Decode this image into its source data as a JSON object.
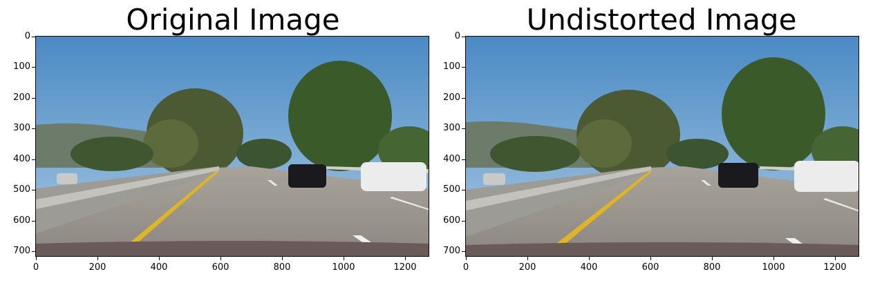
{
  "figure": {
    "panels": [
      {
        "title": "Original Image",
        "x_ticks": [
          "0",
          "200",
          "400",
          "600",
          "800",
          "1000",
          "1200"
        ],
        "y_ticks": [
          "0",
          "100",
          "200",
          "300",
          "400",
          "500",
          "600",
          "700"
        ],
        "image_description": "highway road scene with cars and trees, original (distorted)"
      },
      {
        "title": "Undistorted Image",
        "x_ticks": [
          "0",
          "200",
          "400",
          "600",
          "800",
          "1000",
          "1200"
        ],
        "y_ticks": [
          "0",
          "100",
          "200",
          "300",
          "400",
          "500",
          "600",
          "700"
        ],
        "image_description": "highway road scene with cars and trees, undistorted"
      }
    ]
  }
}
